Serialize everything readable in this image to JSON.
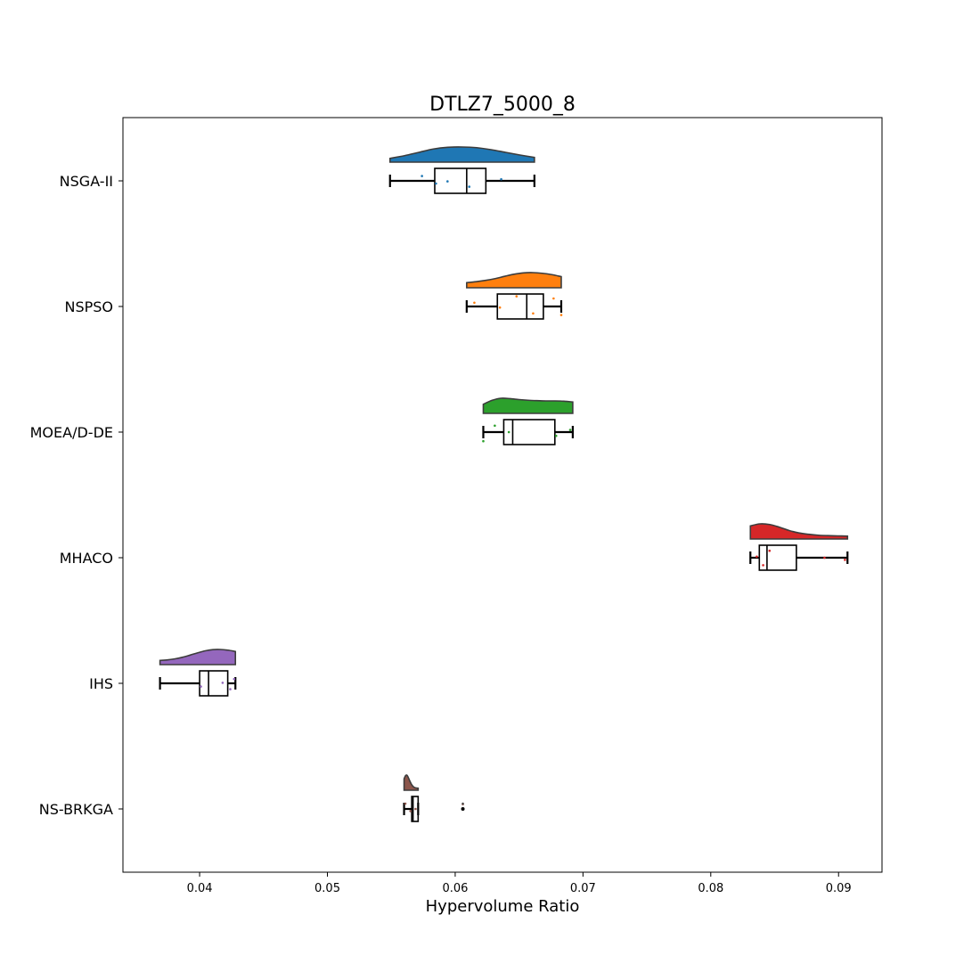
{
  "chart_data": {
    "type": "raincloud",
    "title": "DTLZ7_5000_8",
    "xlabel": "Hypervolume Ratio",
    "ylabel": "",
    "xlim": [
      0.034,
      0.0934
    ],
    "xticks": [
      0.04,
      0.05,
      0.06,
      0.07,
      0.08,
      0.09
    ],
    "xtick_labels": [
      "0.04",
      "0.05",
      "0.06",
      "0.07",
      "0.08",
      "0.09"
    ],
    "grid": false,
    "categories": [
      "NSGA-II",
      "NSPSO",
      "MOEA/D-DE",
      "MHACO",
      "IHS",
      "NS-BRKGA"
    ],
    "series": [
      {
        "name": "NSGA-II",
        "color": "#1f77b4",
        "box": {
          "whisker_low": 0.0549,
          "q1": 0.0584,
          "median": 0.0609,
          "q3": 0.0624,
          "whisker_high": 0.0662
        },
        "points": [
          {
            "x": 0.0574,
            "dy": -0.45
          },
          {
            "x": 0.0594,
            "dy": 0.05
          },
          {
            "x": 0.0611,
            "dy": 0.55
          },
          {
            "x": 0.0636,
            "dy": -0.15
          },
          {
            "x": 0.0585,
            "dy": 0.25
          }
        ],
        "outliers": [],
        "density": [
          0.15,
          0.35,
          0.6,
          0.85,
          0.98,
          1.0,
          0.95,
          0.8,
          0.6,
          0.4,
          0.22
        ]
      },
      {
        "name": "NSPSO",
        "color": "#ff7f0e",
        "box": {
          "whisker_low": 0.0609,
          "q1": 0.0633,
          "median": 0.0656,
          "q3": 0.0669,
          "whisker_high": 0.0683
        },
        "points": [
          {
            "x": 0.0615,
            "dy": -0.35
          },
          {
            "x": 0.0648,
            "dy": -0.95
          },
          {
            "x": 0.0661,
            "dy": 0.65
          },
          {
            "x": 0.0677,
            "dy": -0.75
          },
          {
            "x": 0.0683,
            "dy": 0.8
          },
          {
            "x": 0.0635,
            "dy": 0.1
          }
        ],
        "outliers": [],
        "density": [
          0.25,
          0.32,
          0.42,
          0.55,
          0.72,
          0.88,
          0.98,
          1.0,
          0.95,
          0.85,
          0.7
        ]
      },
      {
        "name": "MOEA/D-DE",
        "color": "#2ca02c",
        "box": {
          "whisker_low": 0.0622,
          "q1": 0.0638,
          "median": 0.0645,
          "q3": 0.0678,
          "whisker_high": 0.0692
        },
        "points": [
          {
            "x": 0.0631,
            "dy": -0.6
          },
          {
            "x": 0.0622,
            "dy": 0.85
          },
          {
            "x": 0.0642,
            "dy": 0.0
          },
          {
            "x": 0.0679,
            "dy": 0.35
          },
          {
            "x": 0.069,
            "dy": -0.2
          }
        ],
        "outliers": [],
        "density": [
          0.55,
          0.85,
          1.0,
          0.97,
          0.9,
          0.85,
          0.82,
          0.8,
          0.8,
          0.78,
          0.72
        ]
      },
      {
        "name": "MHACO",
        "color": "#d62728",
        "box": {
          "whisker_low": 0.0831,
          "q1": 0.0838,
          "median": 0.0844,
          "q3": 0.0867,
          "whisker_high": 0.0907
        },
        "points": [
          {
            "x": 0.0846,
            "dy": -0.65
          },
          {
            "x": 0.0841,
            "dy": 0.7
          },
          {
            "x": 0.0889,
            "dy": 0.0
          },
          {
            "x": 0.0836,
            "dy": -0.1
          },
          {
            "x": 0.0905,
            "dy": 0.2
          }
        ],
        "outliers": [],
        "density": [
          0.85,
          1.0,
          0.95,
          0.75,
          0.5,
          0.32,
          0.22,
          0.15,
          0.12,
          0.1,
          0.08
        ]
      },
      {
        "name": "IHS",
        "color": "#9467bd",
        "box": {
          "whisker_low": 0.0369,
          "q1": 0.04,
          "median": 0.0407,
          "q3": 0.0422,
          "whisker_high": 0.0428
        },
        "points": [
          {
            "x": 0.0418,
            "dy": -0.05
          },
          {
            "x": 0.0424,
            "dy": 0.55
          },
          {
            "x": 0.0401,
            "dy": 0.3
          },
          {
            "x": 0.0427,
            "dy": -0.4
          }
        ],
        "outliers": [],
        "density": [
          0.18,
          0.22,
          0.3,
          0.42,
          0.58,
          0.75,
          0.9,
          0.99,
          1.0,
          0.95,
          0.85
        ]
      },
      {
        "name": "NS-BRKGA",
        "color": "#8c564b",
        "box": {
          "whisker_low": 0.056,
          "q1": 0.0566,
          "median": 0.0567,
          "q3": 0.0571,
          "whisker_high": 0.0571
        },
        "points": [
          {
            "x": 0.0561,
            "dy": -0.5
          },
          {
            "x": 0.0565,
            "dy": 0.2
          },
          {
            "x": 0.0569,
            "dy": 0.0
          },
          {
            "x": 0.0606,
            "dy": -0.45
          }
        ],
        "outliers": [
          {
            "x": 0.0606
          }
        ],
        "density": [
          0.72,
          0.95,
          1.0,
          0.82,
          0.58,
          0.36,
          0.2,
          0.1,
          0.05,
          0.03,
          0.02
        ]
      }
    ]
  }
}
